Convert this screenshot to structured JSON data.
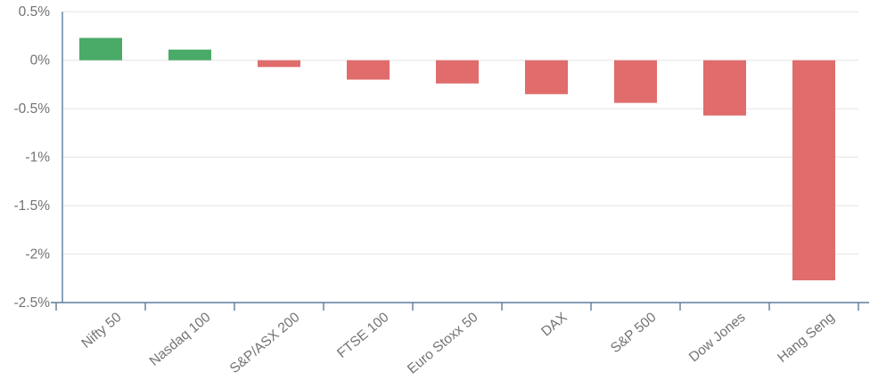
{
  "chart_data": {
    "type": "bar",
    "title": "",
    "xlabel": "",
    "ylabel": "",
    "categories": [
      "Nifty 50",
      "Nasdaq 100",
      "S&P/ASX 200",
      "FTSE 100",
      "Euro Stoxx 50",
      "DAX",
      "S&P 500",
      "Dow Jones",
      "Hang Seng"
    ],
    "values": [
      0.23,
      0.11,
      -0.07,
      -0.2,
      -0.24,
      -0.35,
      -0.44,
      -0.57,
      -2.27
    ],
    "unit": "%",
    "ylim": [
      -2.5,
      0.5
    ],
    "ytick_step": 0.5,
    "yticks": [
      0.5,
      0,
      -0.5,
      -1,
      -1.5,
      -2,
      -2.5
    ],
    "ytick_labels": [
      "0.5%",
      "0%",
      "-0.5%",
      "-1%",
      "-1.5%",
      "-2%",
      "-2.5%"
    ],
    "grid": true,
    "legend": false,
    "colors": {
      "positive_bar": "#4aab68",
      "negative_bar": "#e06c6c",
      "axis_line": "#5b7e9e",
      "gridline": "#e3e3e3",
      "tick_label": "#737373"
    }
  }
}
